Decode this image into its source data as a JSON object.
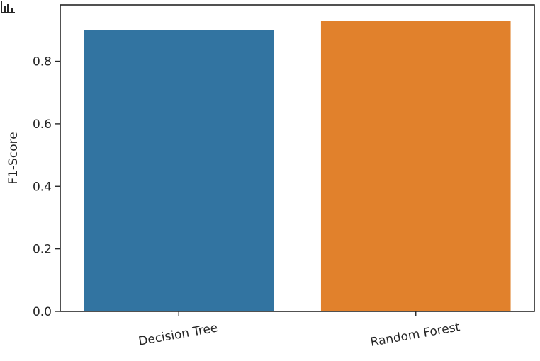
{
  "colors": {
    "series": [
      "#3274a1",
      "#e1812c"
    ],
    "axis": "#262626"
  },
  "icons": {
    "toolbar": "bar-chart-icon"
  },
  "chart_data": {
    "type": "bar",
    "title": "",
    "xlabel": "",
    "ylabel": "F1-Score",
    "categories": [
      "Decision Tree",
      "Random Forest"
    ],
    "values": [
      0.9,
      0.93
    ],
    "ylim": [
      0,
      0.98
    ],
    "yticks": [
      0.0,
      0.2,
      0.4,
      0.6,
      0.8
    ],
    "ytick_labels": [
      "0.0",
      "0.2",
      "0.4",
      "0.6",
      "0.8"
    ],
    "grid": false,
    "legend": "none"
  }
}
